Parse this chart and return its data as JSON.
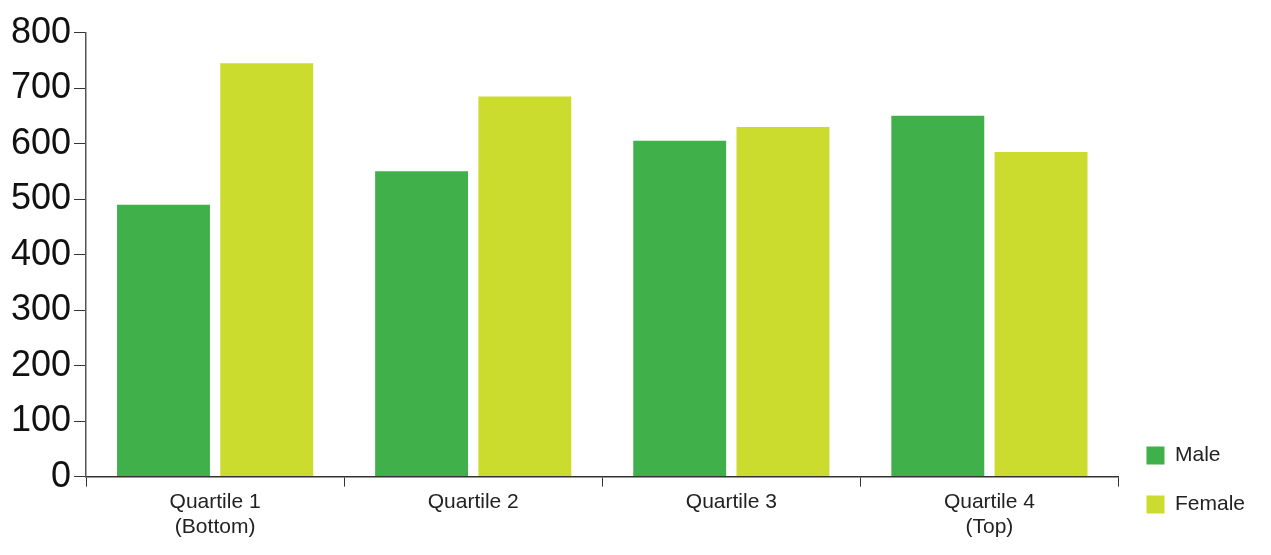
{
  "chart_data": {
    "type": "bar",
    "categories": [
      "Quartile 1 (Bottom)",
      "Quartile 2",
      "Quartile 3",
      "Quartile 4 (Top)"
    ],
    "series": [
      {
        "name": "Male",
        "color": "#40b04b",
        "values": [
          490,
          550,
          605,
          650
        ]
      },
      {
        "name": "Female",
        "color": "#cbdc2e",
        "values": [
          745,
          685,
          630,
          585
        ]
      }
    ],
    "ylim": [
      0,
      800
    ],
    "yticks": [
      0,
      100,
      200,
      300,
      400,
      500,
      600,
      700,
      800
    ],
    "grid": false,
    "legend": "right"
  }
}
